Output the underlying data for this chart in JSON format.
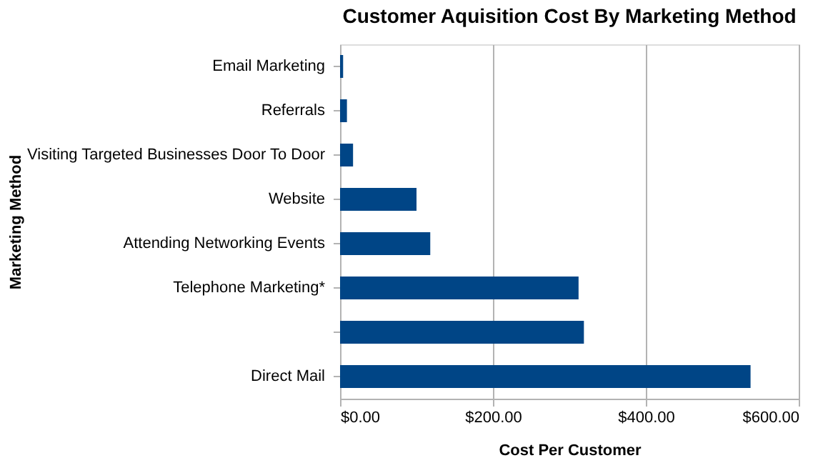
{
  "chart_data": {
    "type": "bar",
    "orientation": "horizontal",
    "title": "Customer Aquisition Cost By Marketing Method",
    "xlabel": "Cost Per Customer",
    "ylabel": "Marketing Method",
    "categories": [
      "Email Marketing",
      "Referrals",
      "Visiting Targeted Businesses Door To Door",
      "Website",
      "Attending Networking Events",
      "Telephone Marketing*",
      null,
      "Direct Mail"
    ],
    "values": [
      4,
      9,
      17,
      100,
      118,
      312,
      319,
      537
    ],
    "color": "#004586",
    "xlim": [
      0,
      600
    ],
    "xticks": [
      {
        "value": 0,
        "label": "$0.00"
      },
      {
        "value": 200,
        "label": "$200.00"
      },
      {
        "value": 400,
        "label": "$400.00"
      },
      {
        "value": 600,
        "label": "$600.00"
      }
    ],
    "grid": "x"
  }
}
